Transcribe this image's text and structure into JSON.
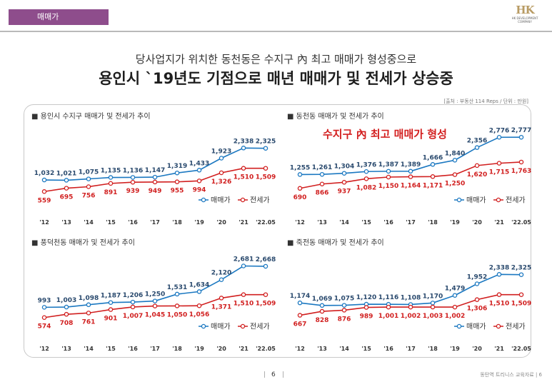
{
  "header": {
    "tab_label": "매매가",
    "logo_mark": "HK",
    "logo_text": "HK DEVELOPMENT COMPANY"
  },
  "subtitle": "당사업지가 위치한 동천동은 수지구 內 최고 매매가 형성중으로",
  "title": "용인시 `19년도 기점으로 매년 매매가 및 전세가 상승중",
  "source": "[출처 : 부동산 114 Reps / 단위 : 만원]",
  "colors": {
    "sale": "#1b78c1",
    "jeonse": "#d11f1f",
    "tab": "#8e4d8c"
  },
  "footer": {
    "page": "6",
    "right_text": "동탄역 트리니스 교육자료",
    "right_page": "6"
  },
  "chart_data": [
    {
      "type": "line",
      "title": "■ 용인시 수지구 매매가 및 전세가 추이",
      "categories": [
        "'12",
        "'13",
        "'14",
        "'15",
        "'16",
        "'17",
        "'18",
        "'19",
        "'20",
        "'21",
        "'22.05"
      ],
      "series": [
        {
          "name": "매매가",
          "values": [
            1032,
            1021,
            1075,
            1135,
            1136,
            1147,
            1319,
            1433,
            1923,
            2338,
            2325
          ]
        },
        {
          "name": "전세가",
          "values": [
            559,
            695,
            756,
            891,
            939,
            949,
            955,
            994,
            1326,
            1510,
            1509
          ]
        }
      ]
    },
    {
      "type": "line",
      "title": "■ 동천동 매매가 및 전세가 추이",
      "annotation": "수지구 內 최고 매매가 형성",
      "categories": [
        "'12",
        "'13",
        "'14",
        "'15",
        "'16",
        "'17",
        "'18",
        "'19",
        "'20",
        "'21",
        "'22.05"
      ],
      "series": [
        {
          "name": "매매가",
          "values": [
            1255,
            1261,
            1304,
            1376,
            1387,
            1389,
            1666,
            1840,
            2356,
            2776,
            2777
          ]
        },
        {
          "name": "전세가",
          "values": [
            690,
            866,
            937,
            1082,
            1150,
            1164,
            1171,
            1250,
            1620,
            1715,
            1763
          ]
        }
      ]
    },
    {
      "type": "line",
      "title": "■ 풍덕천동 매매가 및 전세가 추이",
      "categories": [
        "'12",
        "'13",
        "'14",
        "'15",
        "'16",
        "'17",
        "'18",
        "'19",
        "'20",
        "'21",
        "'22.05"
      ],
      "series": [
        {
          "name": "매매가",
          "values": [
            993,
            1003,
            1098,
            1187,
            1206,
            1250,
            1531,
            1634,
            2120,
            2681,
            2668
          ]
        },
        {
          "name": "전세가",
          "values": [
            574,
            708,
            761,
            901,
            1007,
            1045,
            1050,
            1056,
            1371,
            1510,
            1509
          ]
        }
      ]
    },
    {
      "type": "line",
      "title": "■ 죽전동 매매가 및 전세가 추이",
      "categories": [
        "'12",
        "'13",
        "'14",
        "'15",
        "'16",
        "'17",
        "'18",
        "'19",
        "'20",
        "'21",
        "'22.05"
      ],
      "series": [
        {
          "name": "매매가",
          "values": [
            1174,
            1069,
            1075,
            1120,
            1116,
            1108,
            1170,
            1479,
            1952,
            2338,
            2325
          ]
        },
        {
          "name": "전세가",
          "values": [
            667,
            828,
            876,
            989,
            1001,
            1002,
            1003,
            1002,
            1306,
            1510,
            1509
          ]
        }
      ]
    }
  ]
}
